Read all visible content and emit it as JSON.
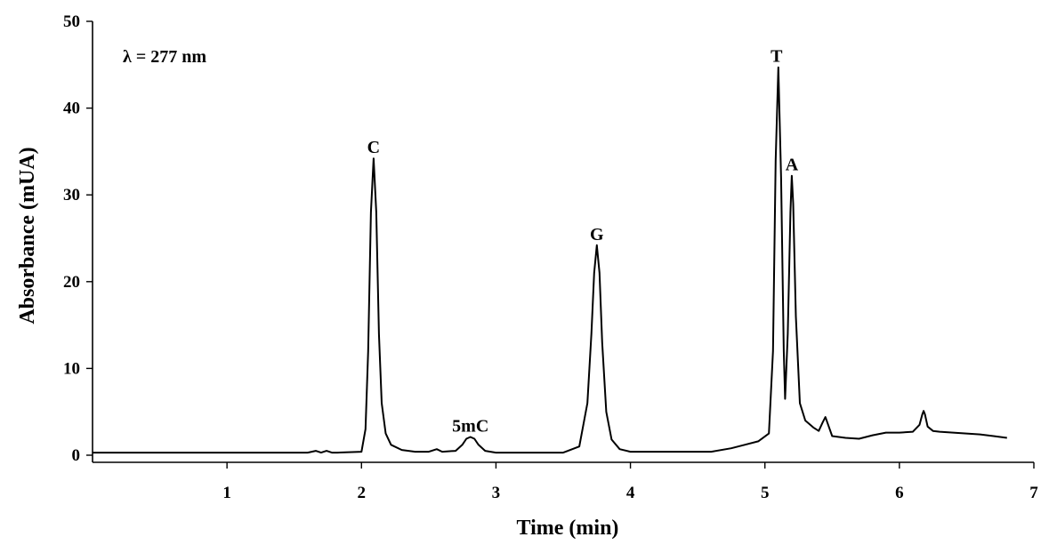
{
  "chart_data": {
    "type": "line",
    "title": "",
    "xlabel": "Time (min)",
    "ylabel": "Absorbance (mUA)",
    "xlim": [
      0,
      7
    ],
    "ylim": [
      0,
      50
    ],
    "x_ticks": [
      1,
      2,
      3,
      4,
      5,
      6,
      7
    ],
    "y_ticks": [
      0,
      10,
      20,
      30,
      40,
      50
    ],
    "grid": false,
    "annotation": "λ = 277 nm",
    "baseline": 0.3,
    "peaks": [
      {
        "label": "C",
        "x": 2.09,
        "y": 34.2
      },
      {
        "label": "5mC",
        "x": 2.81,
        "y": 2.1
      },
      {
        "label": "G",
        "x": 3.75,
        "y": 24.2
      },
      {
        "label": "T",
        "x": 5.1,
        "y": 44.7
      },
      {
        "label": "A",
        "x": 5.2,
        "y": 32.2
      }
    ],
    "series": [
      {
        "x": [
          0.0,
          1.0,
          1.6,
          1.66,
          1.7,
          1.74,
          1.78,
          1.82,
          2.0,
          2.03,
          2.05,
          2.07,
          2.09,
          2.11,
          2.13,
          2.15,
          2.18,
          2.22,
          2.3,
          2.4,
          2.5,
          2.56,
          2.6,
          2.7,
          2.75,
          2.78,
          2.81,
          2.84,
          2.87,
          2.92,
          3.0,
          3.5,
          3.62,
          3.68,
          3.71,
          3.73,
          3.75,
          3.77,
          3.79,
          3.82,
          3.86,
          3.92,
          4.0,
          4.2,
          4.6,
          4.75,
          4.85,
          4.95,
          5.03,
          5.06,
          5.08,
          5.1,
          5.12,
          5.14,
          5.15,
          5.17,
          5.19,
          5.2,
          5.21,
          5.23,
          5.26,
          5.3,
          5.36,
          5.4,
          5.43,
          5.45,
          5.47,
          5.5,
          5.6,
          5.7,
          5.8,
          5.9,
          6.0,
          6.1,
          6.15,
          6.17,
          6.18,
          6.19,
          6.21,
          6.25,
          6.3,
          6.4,
          6.5,
          6.6,
          6.7,
          6.8
        ],
        "y": [
          0.3,
          0.3,
          0.3,
          0.5,
          0.3,
          0.5,
          0.3,
          0.3,
          0.4,
          3.0,
          12.0,
          28.0,
          34.2,
          28.0,
          14.0,
          6.0,
          2.5,
          1.2,
          0.6,
          0.4,
          0.4,
          0.7,
          0.4,
          0.5,
          1.2,
          1.9,
          2.1,
          1.9,
          1.2,
          0.5,
          0.3,
          0.3,
          1.0,
          6.0,
          14.0,
          21.0,
          24.2,
          21.0,
          13.0,
          5.0,
          1.8,
          0.7,
          0.4,
          0.4,
          0.4,
          0.8,
          1.2,
          1.6,
          2.5,
          12.0,
          34.0,
          44.7,
          32.0,
          12.0,
          6.5,
          14.0,
          28.0,
          32.2,
          29.0,
          16.0,
          6.0,
          4.0,
          3.2,
          2.8,
          3.8,
          4.4,
          3.5,
          2.2,
          2.0,
          1.9,
          2.3,
          2.6,
          2.6,
          2.7,
          3.5,
          4.7,
          5.1,
          4.7,
          3.3,
          2.8,
          2.7,
          2.6,
          2.5,
          2.4,
          2.2,
          2.0
        ]
      }
    ]
  }
}
